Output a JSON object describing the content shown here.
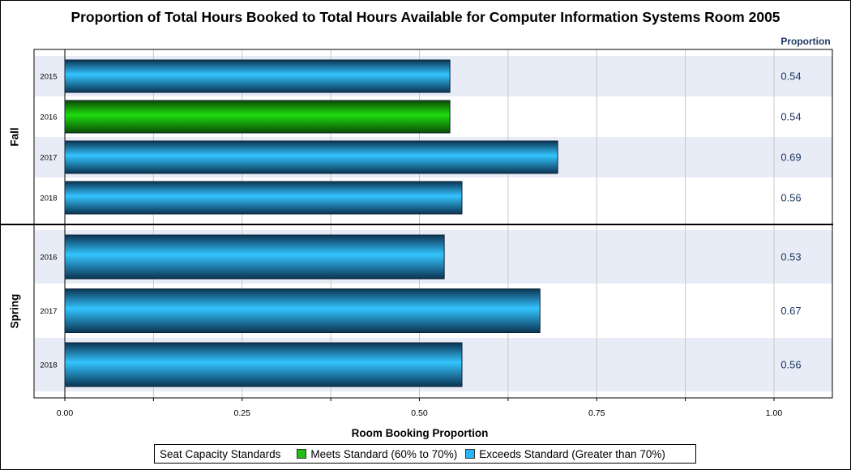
{
  "title": "Proportion of Total Hours Booked to Total Hours Available for Computer Information Systems Room 2005",
  "proportion_header": "Proportion",
  "legend": {
    "title": "Seat Capacity Standards",
    "items": [
      {
        "label": "Meets Standard (60% to 70%)",
        "color": "#22c012"
      },
      {
        "label": "Exceeds Standard (Greater than 70%)",
        "color": "#29b6f6"
      }
    ]
  },
  "colors": {
    "blue_light": "#33c4ff",
    "blue_dark": "#0b3452",
    "green_light": "#1edc0d",
    "green_dark": "#0b4a06",
    "band": "#e8ecf6",
    "value_text": "#1f3864",
    "header_text": "#1f3864",
    "grid": "#c8c8c8"
  },
  "chart_data": {
    "type": "bar",
    "orientation": "horizontal",
    "title": "Proportion of Total Hours Booked to Total Hours Available for Computer Information Systems Room 2005",
    "xlabel": "Room Booking Proportion",
    "xlim": [
      0,
      1.0
    ],
    "xticks": [
      "0.00",
      "0.25",
      "0.50",
      "0.75",
      "1.00"
    ],
    "grid": true,
    "legend_position": "bottom",
    "groups": [
      {
        "name": "Fall",
        "bars": [
          {
            "label": "2015",
            "value": 0.543,
            "display": "0.54",
            "category": "exceeds"
          },
          {
            "label": "2016",
            "value": 0.543,
            "display": "0.54",
            "category": "meets"
          },
          {
            "label": "2017",
            "value": 0.695,
            "display": "0.69",
            "category": "exceeds"
          },
          {
            "label": "2018",
            "value": 0.56,
            "display": "0.56",
            "category": "exceeds"
          }
        ]
      },
      {
        "name": "Spring",
        "bars": [
          {
            "label": "2016",
            "value": 0.535,
            "display": "0.53",
            "category": "exceeds"
          },
          {
            "label": "2017",
            "value": 0.67,
            "display": "0.67",
            "category": "exceeds"
          },
          {
            "label": "2018",
            "value": 0.56,
            "display": "0.56",
            "category": "exceeds"
          }
        ]
      }
    ]
  }
}
